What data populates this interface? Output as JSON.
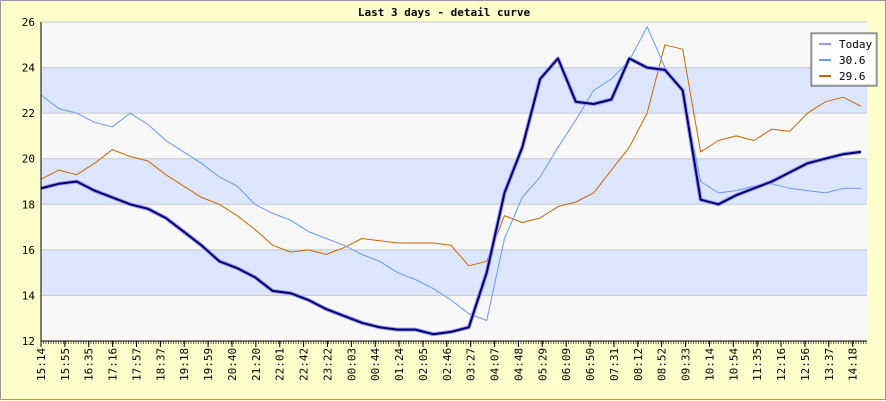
{
  "chart_data": {
    "type": "line",
    "title": "Last 3 days - detail curve",
    "xlabel": "",
    "ylabel": "",
    "ylim": [
      12,
      26
    ],
    "y_ticks": [
      12,
      14,
      16,
      18,
      20,
      22,
      24,
      26
    ],
    "x_tick_labels": [
      "15:14",
      "15:55",
      "16:35",
      "17:16",
      "17:57",
      "18:37",
      "19:18",
      "19:59",
      "20:40",
      "21:20",
      "22:01",
      "22:42",
      "23:22",
      "00:03",
      "00:44",
      "01:24",
      "02:05",
      "02:46",
      "03:27",
      "04:07",
      "04:48",
      "05:29",
      "06:09",
      "06:50",
      "07:31",
      "08:12",
      "08:52",
      "09:33",
      "10:14",
      "10:54",
      "11:35",
      "12:16",
      "12:56",
      "13:37",
      "14:18"
    ],
    "legend_position": "top-right",
    "grid": true,
    "series": [
      {
        "name": "Today",
        "color": "#000066",
        "outline": "#9999FF",
        "values": [
          18.7,
          18.9,
          19.0,
          18.6,
          18.3,
          18.0,
          17.8,
          17.4,
          16.8,
          16.2,
          15.5,
          15.2,
          14.8,
          14.2,
          14.1,
          13.8,
          13.4,
          13.1,
          12.8,
          12.6,
          12.5,
          12.5,
          12.3,
          12.4,
          12.6,
          15.0,
          18.5,
          20.5,
          23.5,
          24.4,
          22.5,
          22.4,
          22.6,
          24.4,
          24.0,
          23.9,
          23.0,
          18.2,
          18.0,
          18.4,
          18.7,
          19.0,
          19.4,
          19.8,
          20.0,
          20.2,
          20.3
        ]
      },
      {
        "name": "30.6",
        "color": "#6699FF",
        "values": [
          22.8,
          22.2,
          22.0,
          21.6,
          21.4,
          22.0,
          21.5,
          20.8,
          20.3,
          19.8,
          19.2,
          18.8,
          18.0,
          17.6,
          17.3,
          16.8,
          16.5,
          16.2,
          15.8,
          15.5,
          15.0,
          14.7,
          14.3,
          13.8,
          13.2,
          12.9,
          16.5,
          18.3,
          19.2,
          20.5,
          21.7,
          23.0,
          23.5,
          24.3,
          25.8,
          24.0,
          23.0,
          19.0,
          18.5,
          18.6,
          18.8,
          18.9,
          18.7,
          18.6,
          18.5,
          18.7,
          18.7
        ]
      },
      {
        "name": "29.6",
        "color": "#CC6600",
        "values": [
          19.1,
          19.5,
          19.3,
          19.8,
          20.4,
          20.1,
          19.9,
          19.3,
          18.8,
          18.3,
          18.0,
          17.5,
          16.9,
          16.2,
          15.9,
          16.0,
          15.8,
          16.1,
          16.5,
          16.4,
          16.3,
          16.3,
          16.3,
          16.2,
          15.3,
          15.5,
          17.5,
          17.2,
          17.4,
          17.9,
          18.1,
          18.5,
          19.5,
          20.5,
          22.0,
          25.0,
          24.8,
          20.3,
          20.8,
          21.0,
          20.8,
          21.3,
          21.2,
          22.0,
          22.5,
          22.7,
          22.3
        ]
      }
    ]
  }
}
